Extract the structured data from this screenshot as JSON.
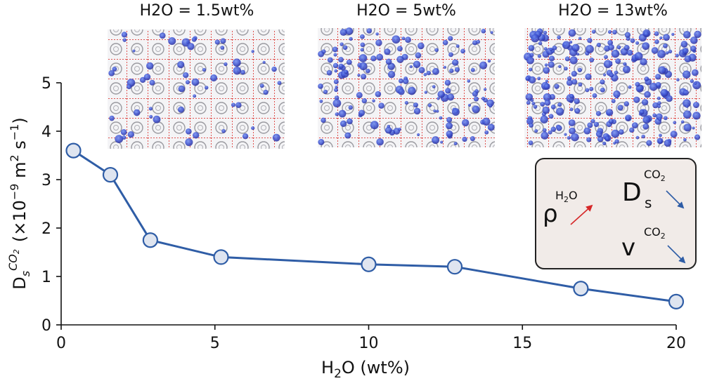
{
  "chart_data": {
    "type": "line",
    "xlabel": "H2O (wt%)",
    "ylabel": "D_s^CO2 (×10^−9 m^2 s^−1)",
    "xlim": [
      0,
      20
    ],
    "ylim": [
      0,
      5
    ],
    "xticks": [
      "0",
      "5",
      "10",
      "15",
      "20"
    ],
    "yticks": [
      "0",
      "1",
      "2",
      "3",
      "4",
      "5"
    ],
    "grid": false,
    "color": "#2f5da6",
    "series": [
      {
        "x": [
          0.4,
          1.6,
          2.9,
          5.2,
          10.0,
          12.8,
          16.9,
          20.0
        ],
        "y": [
          3.6,
          3.1,
          1.75,
          1.4,
          1.25,
          1.2,
          0.75,
          0.48
        ]
      }
    ],
    "snapshots": [
      {
        "title": "H2O = 1.5wt%",
        "water_level": 0.15
      },
      {
        "title": "H2O = 5wt%",
        "water_level": 0.5
      },
      {
        "title": "H2O = 13wt%",
        "water_level": 0.9
      }
    ],
    "legend_box": {
      "rho_symbol": "ρ",
      "rho_sup": "H2O",
      "rho_trend": "increasing",
      "d_symbol": "D",
      "d_sub": "s",
      "d_sup": "CO2",
      "d_trend": "decreasing",
      "v_symbol": "v",
      "v_sup": "CO2",
      "v_trend": "decreasing",
      "up_arrow_color": "#d62728",
      "down_arrow_color": "#2f5da6"
    }
  }
}
